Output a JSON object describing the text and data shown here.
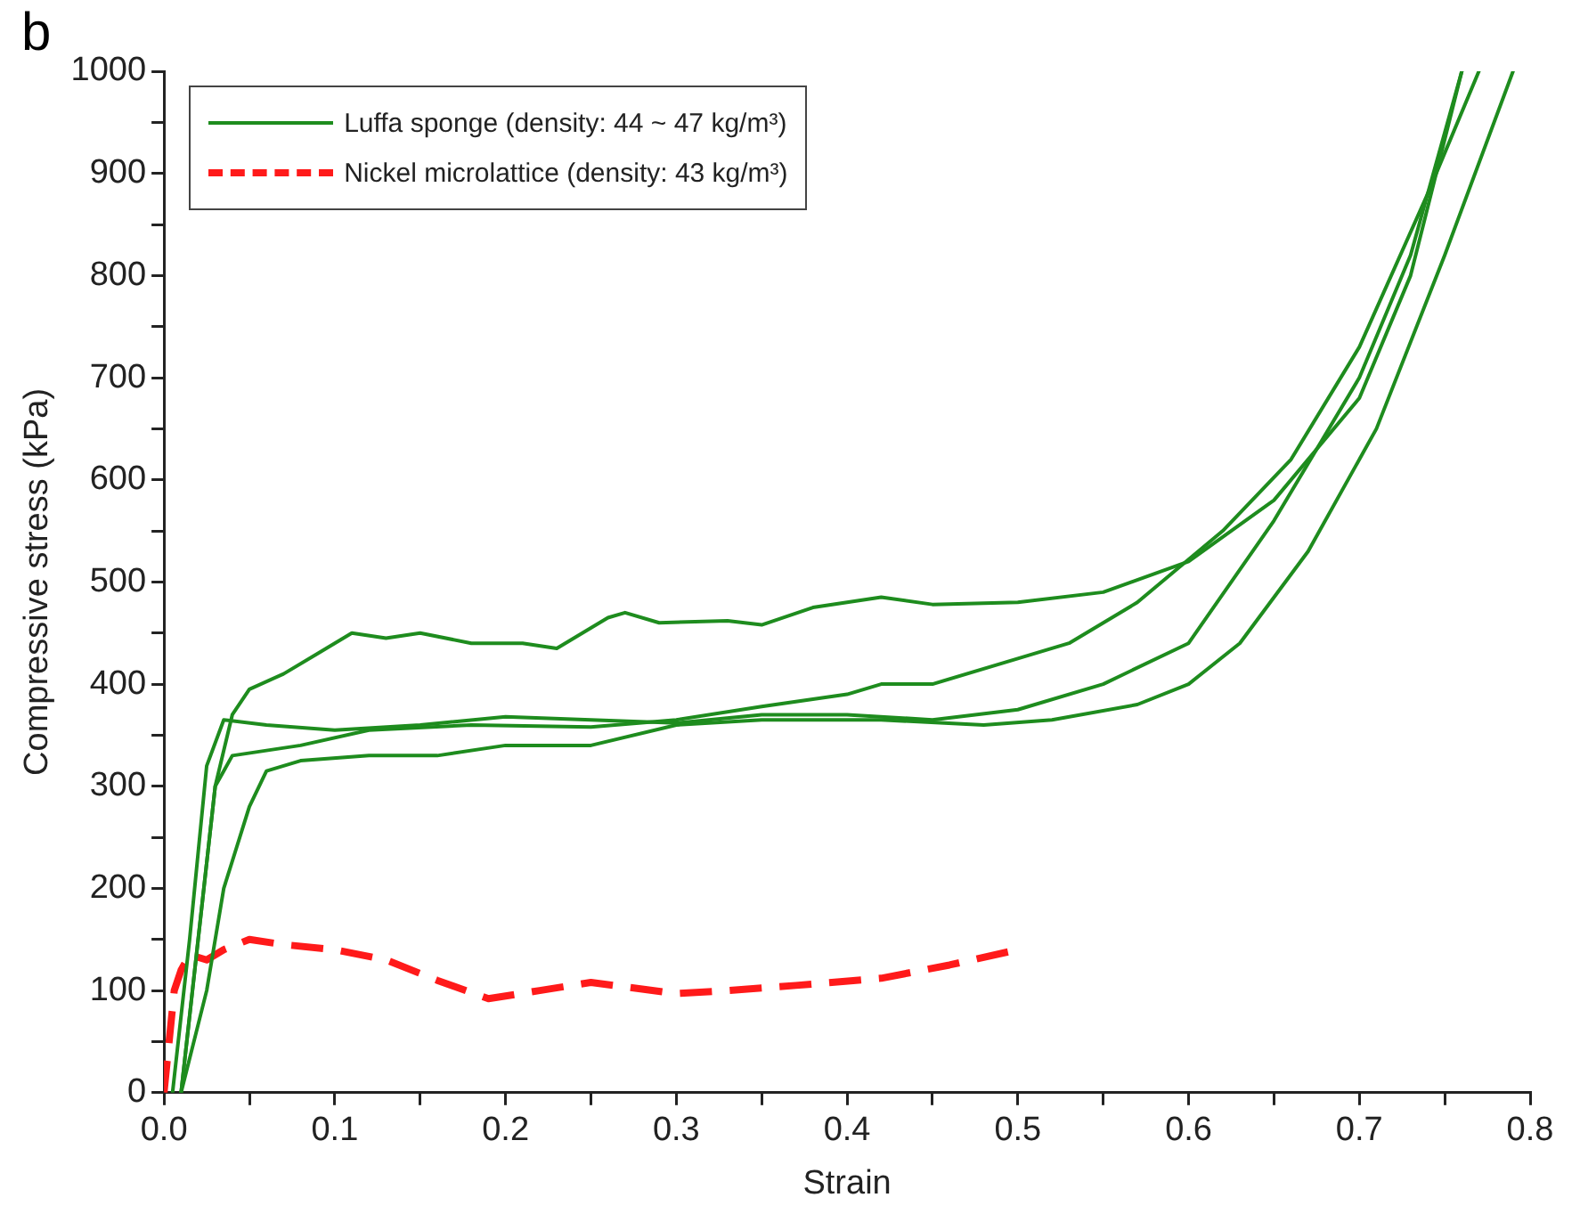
{
  "chart_data": {
    "type": "line",
    "xlabel": "Strain",
    "ylabel": "Compressive stress (kPa)",
    "annotations": [
      "b"
    ],
    "xlim": [
      0,
      0.8
    ],
    "ylim": [
      0,
      1000
    ],
    "xticks": [
      {
        "value": 0,
        "label": "0.0"
      },
      {
        "value": 0.05,
        "label": null
      },
      {
        "value": 0.1,
        "label": "0.1"
      },
      {
        "value": 0.15,
        "label": null
      },
      {
        "value": 0.2,
        "label": "0.2"
      },
      {
        "value": 0.25,
        "label": null
      },
      {
        "value": 0.3,
        "label": "0.3"
      },
      {
        "value": 0.35,
        "label": null
      },
      {
        "value": 0.4,
        "label": "0.4"
      },
      {
        "value": 0.45,
        "label": null
      },
      {
        "value": 0.5,
        "label": "0.5"
      },
      {
        "value": 0.55,
        "label": null
      },
      {
        "value": 0.6,
        "label": "0.6"
      },
      {
        "value": 0.65,
        "label": null
      },
      {
        "value": 0.7,
        "label": "0.7"
      },
      {
        "value": 0.75,
        "label": null
      },
      {
        "value": 0.8,
        "label": "0.8"
      }
    ],
    "yticks": [
      0,
      {
        "value": 50,
        "label": null
      },
      100,
      {
        "value": 150,
        "label": null
      },
      200,
      {
        "value": 250,
        "label": null
      },
      300,
      {
        "value": 350,
        "label": null
      },
      400,
      {
        "value": 450,
        "label": null
      },
      500,
      {
        "value": 550,
        "label": null
      },
      600,
      {
        "value": 650,
        "label": null
      },
      700,
      {
        "value": 750,
        "label": null
      },
      800,
      {
        "value": 850,
        "label": null
      },
      900,
      {
        "value": 950,
        "label": null
      },
      1000
    ],
    "grid": false,
    "legend": "top left",
    "marker": "none",
    "series": [
      {
        "name": "Luffa sponge (density: 44 ~ 47 kg/m³)",
        "color": "#1e8c1e",
        "line_style": "solid",
        "x": [
          0.01,
          0.02,
          0.03,
          0.04,
          0.05,
          0.07,
          0.09,
          0.11,
          0.13,
          0.15,
          0.18,
          0.21,
          0.23,
          0.26,
          0.27,
          0.29,
          0.33,
          0.35,
          0.38,
          0.42,
          0.45,
          0.5,
          0.55,
          0.6,
          0.65,
          0.7,
          0.73,
          0.76
        ],
        "values": [
          0,
          150,
          300,
          370,
          395,
          410,
          430,
          450,
          445,
          450,
          440,
          440,
          435,
          465,
          470,
          460,
          462,
          458,
          475,
          485,
          478,
          480,
          490,
          520,
          580,
          680,
          800,
          1000
        ]
      },
      {
        "color": "#1e8c1e",
        "line_style": "solid",
        "x": [
          0.005,
          0.015,
          0.025,
          0.035,
          0.06,
          0.1,
          0.15,
          0.2,
          0.25,
          0.3,
          0.35,
          0.4,
          0.45,
          0.5,
          0.55,
          0.6,
          0.65,
          0.7,
          0.73,
          0.76
        ],
        "values": [
          0,
          150,
          320,
          365,
          360,
          355,
          360,
          368,
          365,
          362,
          370,
          370,
          365,
          375,
          400,
          440,
          560,
          700,
          820,
          1000
        ]
      },
      {
        "color": "#1e8c1e",
        "line_style": "solid",
        "x": [
          0.01,
          0.02,
          0.03,
          0.04,
          0.08,
          0.12,
          0.18,
          0.25,
          0.3,
          0.35,
          0.4,
          0.42,
          0.45,
          0.5,
          0.53,
          0.57,
          0.62,
          0.66,
          0.7,
          0.74,
          0.77
        ],
        "values": [
          0,
          150,
          300,
          330,
          340,
          355,
          360,
          358,
          365,
          378,
          390,
          400,
          400,
          425,
          440,
          480,
          550,
          620,
          730,
          880,
          1000
        ]
      },
      {
        "color": "#1e8c1e",
        "line_style": "solid",
        "x": [
          0.01,
          0.025,
          0.035,
          0.05,
          0.06,
          0.08,
          0.12,
          0.16,
          0.2,
          0.25,
          0.3,
          0.35,
          0.42,
          0.48,
          0.52,
          0.57,
          0.6,
          0.63,
          0.67,
          0.71,
          0.75,
          0.79
        ],
        "values": [
          0,
          100,
          200,
          280,
          315,
          325,
          330,
          330,
          340,
          340,
          360,
          365,
          365,
          360,
          365,
          380,
          400,
          440,
          530,
          650,
          820,
          1000
        ]
      },
      {
        "name": "Nickel microlattice (density: 43 kg/m³)",
        "color": "#ff1a1a",
        "line_style": "dashed",
        "x": [
          0,
          0.003,
          0.006,
          0.01,
          0.015,
          0.025,
          0.035,
          0.05,
          0.07,
          0.1,
          0.13,
          0.16,
          0.19,
          0.22,
          0.25,
          0.3,
          0.33,
          0.37,
          0.42,
          0.46,
          0.5
        ],
        "values": [
          0,
          50,
          100,
          120,
          135,
          130,
          140,
          150,
          145,
          140,
          130,
          110,
          92,
          100,
          108,
          97,
          100,
          105,
          112,
          125,
          140
        ]
      }
    ]
  }
}
